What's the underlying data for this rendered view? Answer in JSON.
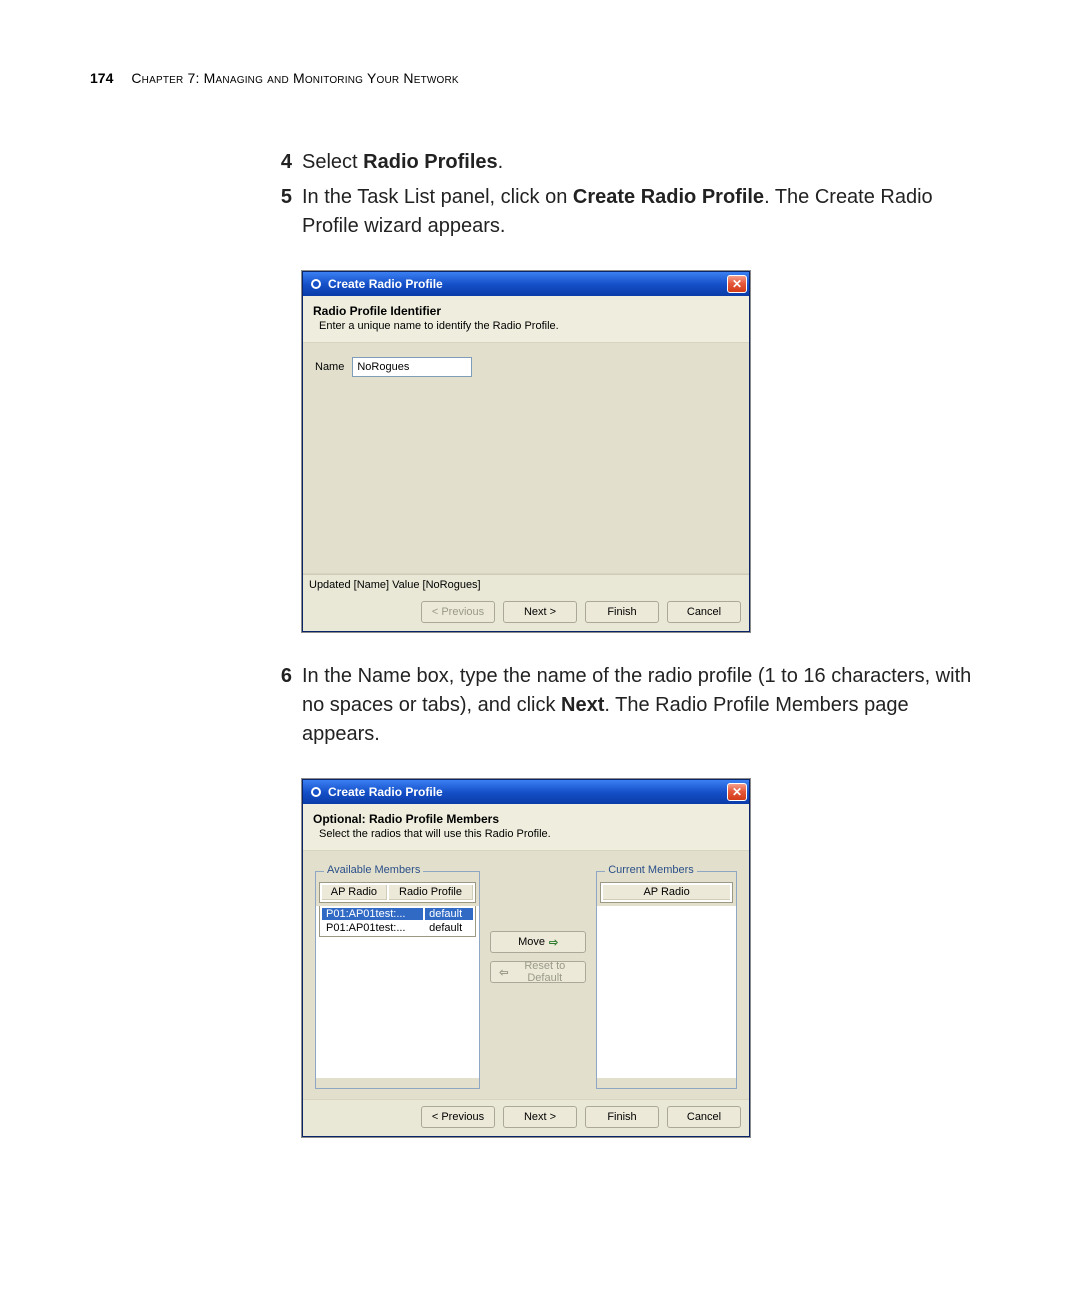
{
  "page": {
    "number": "174",
    "chapter": "Chapter 7: Managing and Monitoring Your Network"
  },
  "steps": {
    "s4_num": "4",
    "s4_pre": "Select ",
    "s4_bold": "Radio Profiles",
    "s4_post": ".",
    "s5_num": "5",
    "s5_pre": "In the Task List panel, click on ",
    "s5_bold": "Create Radio Profile",
    "s5_post": ". The Create Radio Profile wizard appears.",
    "s6_num": "6",
    "s6_pre": "In the Name box, type the name of the radio profile (1 to 16 characters, with no spaces or tabs), and click ",
    "s6_bold": "Next",
    "s6_post": ". The Radio Profile Members page appears."
  },
  "dialog1": {
    "title": "Create Radio Profile",
    "heading": "Radio Profile Identifier",
    "subheading": "Enter a unique name to identify the Radio Profile.",
    "name_label": "Name",
    "name_value": "NoRogues",
    "status": "Updated [Name] Value [NoRogues]",
    "buttons": {
      "prev": "< Previous",
      "next": "Next >",
      "finish": "Finish",
      "cancel": "Cancel"
    }
  },
  "dialog2": {
    "title": "Create Radio Profile",
    "heading": "Optional: Radio Profile Members",
    "subheading": "Select the radios that will use this Radio Profile.",
    "available_legend": "Available Members",
    "current_legend": "Current Members",
    "avail_cols": {
      "c1": "AP Radio",
      "c2": "Radio Profile"
    },
    "curr_cols": {
      "c1": "AP Radio"
    },
    "avail_rows": [
      {
        "radio": "P01:AP01test:...",
        "profile": "default",
        "selected": true
      },
      {
        "radio": "P01:AP01test:...",
        "profile": "default",
        "selected": false
      }
    ],
    "move_label": "Move",
    "reset_label": "Reset to Default",
    "buttons": {
      "prev": "< Previous",
      "next": "Next >",
      "finish": "Finish",
      "cancel": "Cancel"
    }
  },
  "colors": {
    "titlebar_grad_top": "#3a80f3",
    "titlebar_grad_mid": "#1651c9",
    "titlebar_grad_bot": "#0a3ba8",
    "close_grad_top": "#f6a08e",
    "close_grad_bot": "#d23b18",
    "dialog_bg": "#efeede",
    "content_bg": "#e2e0cd",
    "selection_bg": "#316ac5",
    "group_border": "#8fa6c4",
    "legend_text": "#2b4f88"
  }
}
